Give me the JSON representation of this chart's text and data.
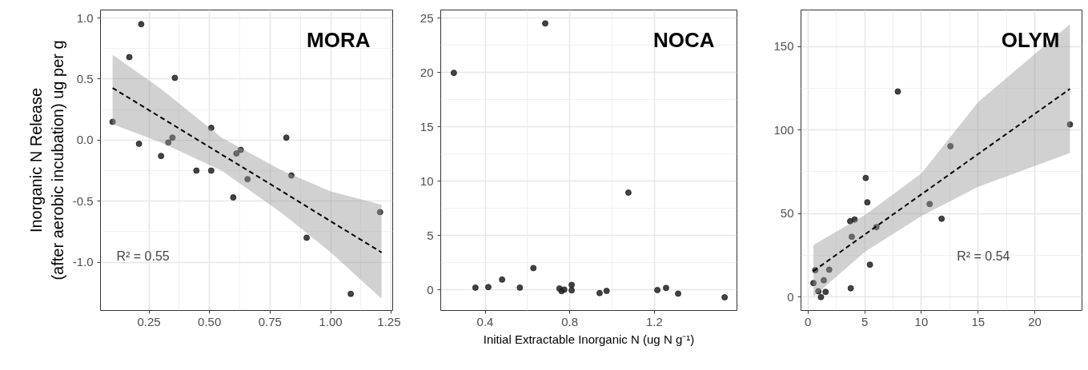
{
  "chart_data": [
    {
      "type": "scatter",
      "title": "MORA",
      "ylabel": "Inorganic N Release\n(after aerobic incubation) ug per g",
      "annotations": [
        "R² = 0.55"
      ],
      "xlim": [
        0.05,
        1.256
      ],
      "ylim": [
        -1.396,
        1.066
      ],
      "xticks": [
        {
          "value": 0.25,
          "label": "0.25"
        },
        {
          "value": 0.5,
          "label": "0.50"
        },
        {
          "value": 0.75,
          "label": "0.75"
        },
        {
          "value": 1.0,
          "label": "1.00"
        },
        {
          "value": 1.25,
          "label": "1.25"
        }
      ],
      "yticks": [
        {
          "value": -1.0,
          "label": "-1.0"
        },
        {
          "value": -0.5,
          "label": "-0.5"
        },
        {
          "value": 0,
          "label": "0.0"
        },
        {
          "value": 0.5,
          "label": "0.5"
        },
        {
          "value": 1.0,
          "label": "1.0"
        }
      ],
      "grid": true,
      "series": [
        {
          "marker": "circle",
          "color": "#222222",
          "x": [
            0.1,
            0.169,
            0.209,
            0.218,
            0.3,
            0.33,
            0.347,
            0.357,
            0.446,
            0.507,
            0.507,
            0.598,
            0.611,
            0.629,
            0.657,
            0.817,
            0.838,
            0.901,
            1.083,
            1.204
          ],
          "values": [
            0.15,
            0.68,
            -0.03,
            0.95,
            -0.13,
            -0.02,
            0.02,
            0.51,
            -0.25,
            0.1,
            -0.25,
            -0.47,
            -0.11,
            -0.08,
            -0.32,
            0.02,
            -0.29,
            -0.8,
            -1.26,
            -0.59
          ]
        },
        {
          "type": "line",
          "marker": "none",
          "line_style": "dashed",
          "color": "#000000",
          "x": [
            0.1,
            0.3,
            0.55,
            0.8,
            1.0,
            1.21
          ],
          "values": [
            0.427,
            0.185,
            -0.118,
            -0.42,
            -0.665,
            -0.92
          ],
          "lower": [
            0.13,
            -0.02,
            -0.25,
            -0.6,
            -0.92,
            -1.3
          ],
          "upper": [
            0.7,
            0.42,
            0.02,
            -0.25,
            -0.42,
            -0.53
          ]
        }
      ]
    },
    {
      "type": "scatter",
      "title": "NOCA",
      "xlabel": "Initial Extractable Inorganic N (ug N g⁻¹)",
      "xlim": [
        0.19,
        1.59
      ],
      "ylim": [
        -1.9,
        25.74
      ],
      "xticks": [
        0.4,
        0.8,
        1.2
      ],
      "yticks": [
        0,
        5,
        10,
        15,
        20,
        25
      ],
      "grid": true,
      "series": [
        {
          "marker": "circle",
          "color": "#222222",
          "x": [
            0.252,
            0.354,
            0.415,
            0.48,
            0.564,
            0.628,
            0.684,
            0.751,
            0.761,
            0.774,
            0.809,
            0.809,
            0.941,
            0.974,
            1.077,
            1.214,
            1.255,
            1.312,
            1.532
          ],
          "values": [
            19.96,
            0.2,
            0.25,
            0.94,
            0.2,
            2.0,
            24.5,
            0.12,
            -0.12,
            0.02,
            0.45,
            -0.05,
            -0.3,
            -0.1,
            8.94,
            -0.02,
            0.17,
            -0.35,
            -0.69
          ]
        }
      ]
    },
    {
      "type": "scatter",
      "title": "OLYM",
      "annotations": [
        "R² = 0.54"
      ],
      "xlim": [
        -0.62,
        24.16
      ],
      "ylim": [
        -8.0,
        171.8
      ],
      "xticks": [
        0,
        5,
        10,
        15,
        20
      ],
      "yticks": [
        0,
        50,
        100,
        150
      ],
      "grid": true,
      "series": [
        {
          "marker": "circle",
          "color": "#222222",
          "x": [
            0.48,
            0.64,
            0.91,
            1.14,
            1.39,
            1.55,
            1.87,
            3.72,
            3.77,
            3.86,
            4.11,
            5.09,
            5.23,
            5.46,
            6.03,
            7.92,
            10.73,
            11.78,
            12.56,
            23.1
          ],
          "values": [
            8.4,
            16.1,
            3.5,
            0,
            10.1,
            3.1,
            16.4,
            45.4,
            5.3,
            36.1,
            46.4,
            71.3,
            56.7,
            19.4,
            41.9,
            123.0,
            55.7,
            46.9,
            90.3,
            103.3
          ]
        },
        {
          "type": "line",
          "marker": "none",
          "line_style": "dashed",
          "color": "#000000",
          "x": [
            0.48,
            5,
            10,
            15,
            23.1
          ],
          "values": [
            15.6,
            37.4,
            61.5,
            85.6,
            124.6
          ],
          "lower": [
            0.3,
            27,
            48.5,
            66,
            86.2
          ],
          "upper": [
            31.2,
            49,
            74,
            116.7,
            163.3
          ]
        }
      ]
    }
  ]
}
